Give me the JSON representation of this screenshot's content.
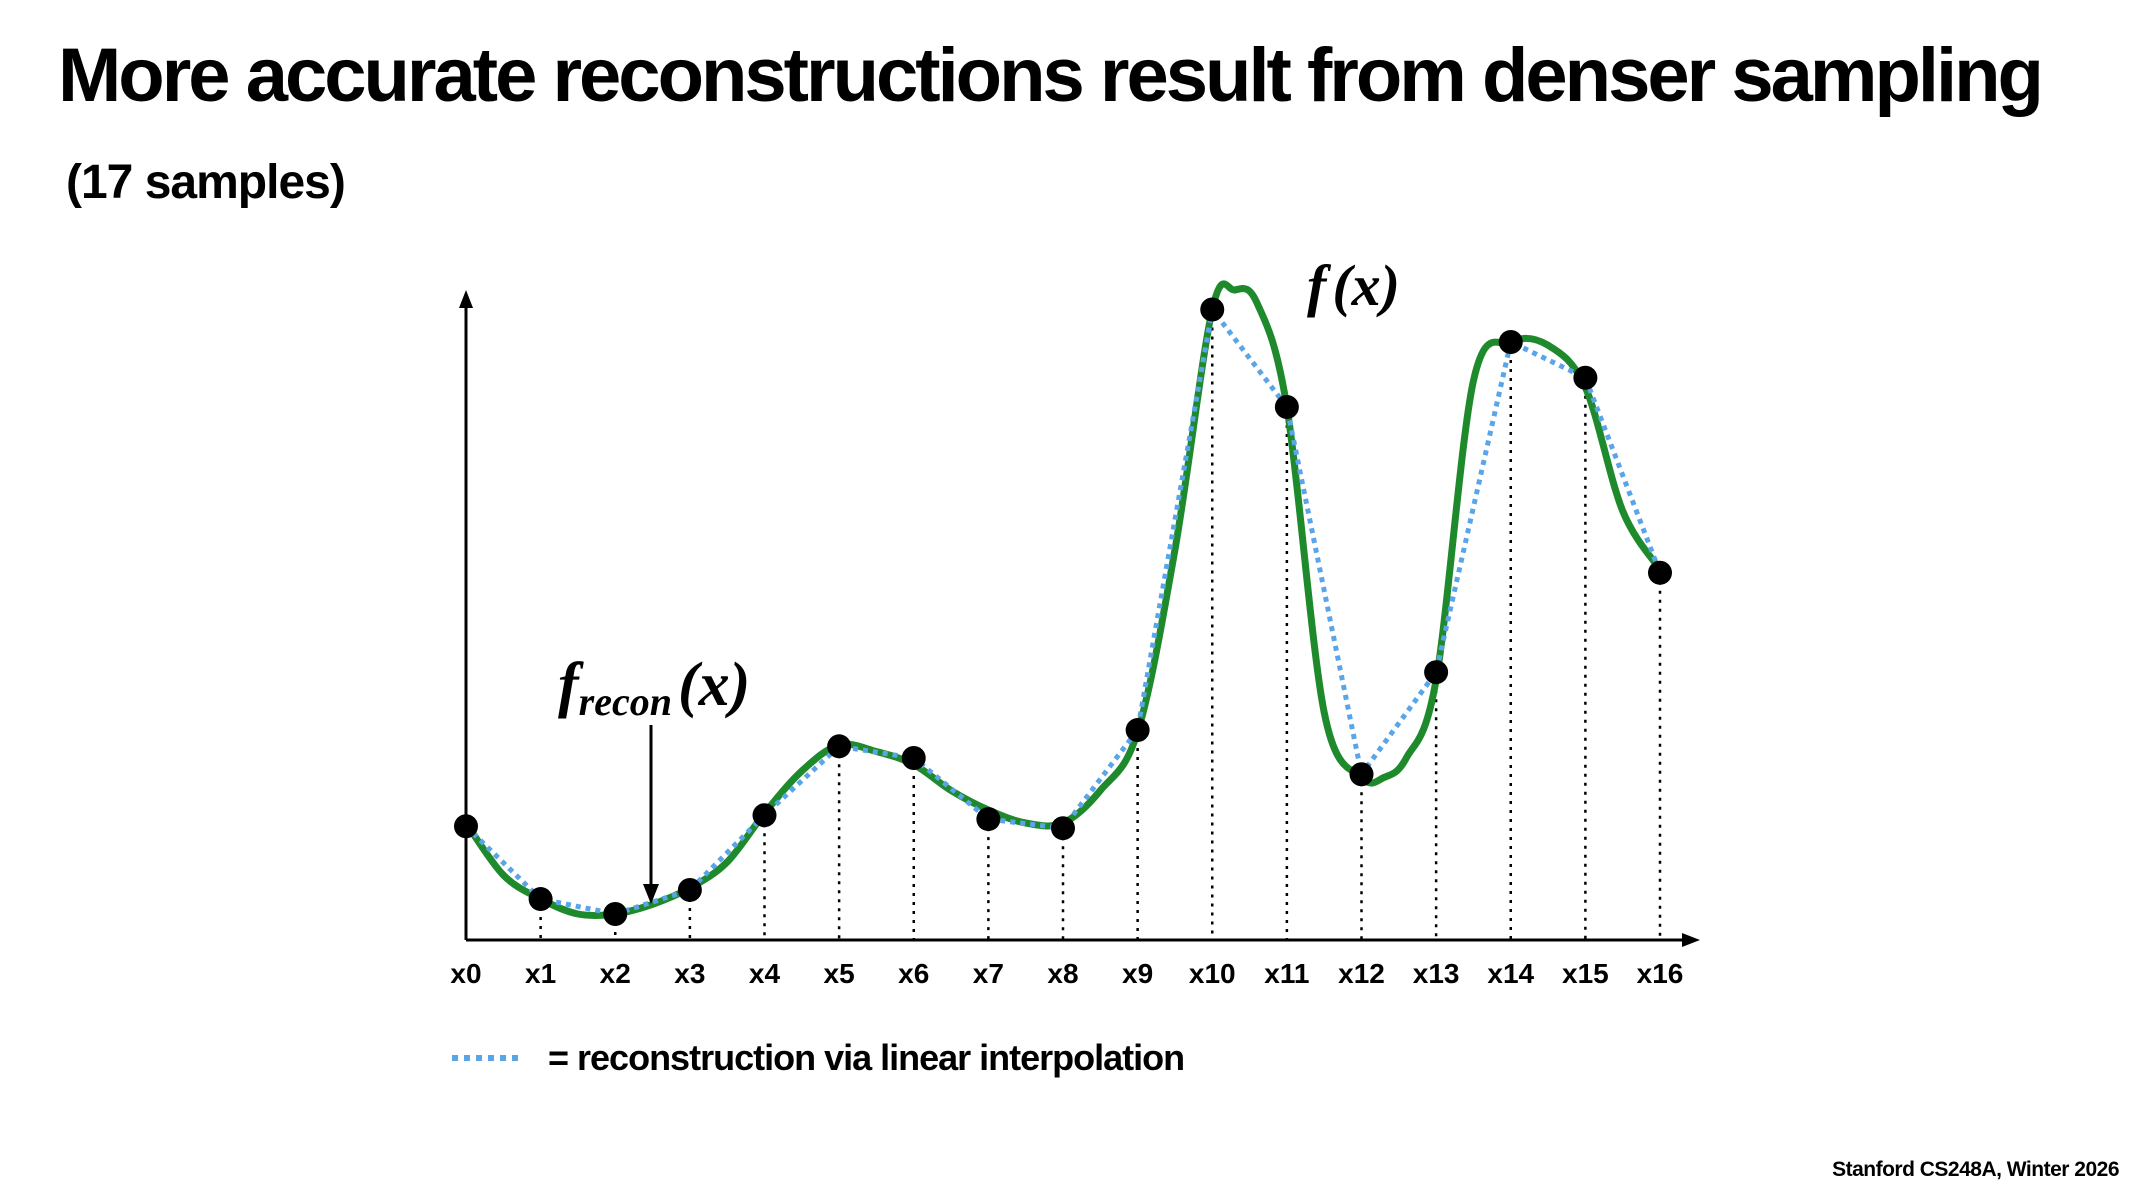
{
  "slide": {
    "title": "More accurate reconstructions result from denser sampling",
    "subtitle": "(17 samples)",
    "footer": "Stanford CS248A, Winter 2026"
  },
  "chart_data": {
    "type": "line",
    "title": "",
    "xlabel": "",
    "ylabel": "",
    "categories": [
      "x0",
      "x1",
      "x2",
      "x3",
      "x4",
      "x5",
      "x6",
      "x7",
      "x8",
      "x9",
      "x10",
      "x11",
      "x12",
      "x13",
      "x14",
      "x15",
      "x16"
    ],
    "xlim": [
      0,
      16
    ],
    "ylim": [
      0,
      1
    ],
    "grid": false,
    "colors": {
      "function": "#1f8a2c",
      "reconstruction": "#5aa5e8",
      "samples": "#000000",
      "droplines": "#000000"
    },
    "function_label": {
      "f": "f",
      "arg": "(x)"
    },
    "recon_label": {
      "f": "f",
      "sub": "recon",
      "arg": "(x)"
    },
    "legend": {
      "text": "= reconstruction via linear interpolation",
      "placement": "bottom-left"
    },
    "series": [
      {
        "name": "f(x)",
        "style": "solid",
        "x": [
          0,
          0.5,
          1,
          1.5,
          2,
          2.5,
          3,
          3.5,
          4,
          4.5,
          5,
          5.5,
          6,
          6.5,
          7,
          7.5,
          8,
          8.5,
          9,
          9.5,
          10,
          10.3,
          10.6,
          11,
          11.5,
          12,
          12.3,
          12.6,
          13,
          13.5,
          14,
          14.5,
          15,
          15.5,
          16
        ],
        "y": [
          0.18,
          0.1,
          0.063,
          0.04,
          0.04,
          0.055,
          0.08,
          0.12,
          0.195,
          0.26,
          0.3,
          0.29,
          0.27,
          0.23,
          0.2,
          0.18,
          0.18,
          0.23,
          0.32,
          0.6,
          0.97,
          1.0,
          0.98,
          0.82,
          0.35,
          0.25,
          0.25,
          0.28,
          0.4,
          0.86,
          0.92,
          0.915,
          0.85,
          0.66,
          0.57
        ]
      },
      {
        "name": "f_recon(x)",
        "style": "dotted",
        "x": [
          0,
          1,
          2,
          3,
          4,
          5,
          6,
          7,
          8,
          9,
          10,
          11,
          12,
          13,
          14,
          15,
          16
        ],
        "y": [
          0.175,
          0.063,
          0.04,
          0.077,
          0.192,
          0.298,
          0.28,
          0.186,
          0.172,
          0.323,
          0.97,
          0.82,
          0.255,
          0.412,
          0.92,
          0.865,
          0.565
        ]
      }
    ]
  }
}
